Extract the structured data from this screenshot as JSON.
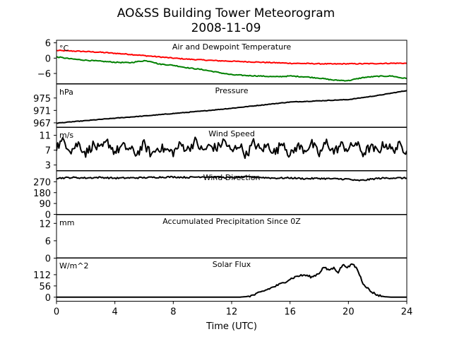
{
  "chart_data": {
    "title": "AO&SS Building Tower Meteorogram",
    "subtitle": "2008-11-09",
    "xlabel": "Time (UTC)",
    "xlim": [
      0,
      24
    ],
    "xticks": [
      0,
      4,
      8,
      12,
      16,
      20,
      24
    ],
    "panels": [
      {
        "id": "temperature",
        "type": "line",
        "title": "Air and Dewpoint Temperature",
        "unit": "°C",
        "ylim": [
          -10,
          7
        ],
        "yticks": [
          "6",
          "0",
          "−6"
        ],
        "ytick_values": [
          6,
          0,
          -6
        ],
        "series": [
          {
            "color": "#ff0000",
            "x": [
              0,
              1,
              2,
              3,
              4,
              5,
              6,
              7,
              8,
              9,
              10,
              11,
              12,
              13,
              14,
              15,
              16,
              17,
              18,
              19,
              20,
              21,
              22,
              23,
              24
            ],
            "y": [
              3.0,
              2.8,
              2.6,
              2.3,
              1.9,
              1.5,
              1.0,
              0.5,
              0.0,
              -0.4,
              -0.7,
              -1.0,
              -1.2,
              -1.4,
              -1.6,
              -1.8,
              -2.0,
              -2.1,
              -2.2,
              -2.3,
              -2.2,
              -2.2,
              -2.1,
              -2.0,
              -2.0
            ]
          },
          {
            "color": "#008000",
            "x": [
              0,
              1,
              2,
              3,
              4,
              5,
              6,
              6.5,
              7,
              8,
              9,
              10,
              11,
              12,
              13,
              14,
              15,
              16,
              17,
              18,
              19,
              20,
              21,
              22,
              23,
              23.5,
              24
            ],
            "y": [
              0.5,
              -0.3,
              -0.8,
              -1.2,
              -1.6,
              -1.8,
              -1.0,
              -1.3,
              -2.3,
              -2.8,
              -3.8,
              -4.5,
              -5.5,
              -6.5,
              -6.8,
              -7.0,
              -7.3,
              -7.0,
              -7.3,
              -7.8,
              -8.6,
              -8.8,
              -7.6,
              -7.1,
              -7.0,
              -7.6,
              -8.0
            ]
          }
        ]
      },
      {
        "id": "pressure",
        "type": "line",
        "title": "Pressure",
        "unit": "hPa",
        "ylim": [
          965.5,
          979.5
        ],
        "yticks": [
          "975",
          "971",
          "967"
        ],
        "ytick_values": [
          975,
          971,
          967
        ],
        "series": [
          {
            "color": "#000000",
            "x": [
              0,
              2,
              4,
              6,
              8,
              10,
              12,
              14,
              16,
              18,
              20,
              22,
              24
            ],
            "y": [
              966.9,
              967.7,
              968.5,
              969.2,
              970.0,
              970.8,
              971.7,
              972.7,
              973.7,
              974.1,
              974.5,
              975.8,
              977.4
            ]
          }
        ]
      },
      {
        "id": "wind-speed",
        "type": "line",
        "title": "Wind Speed",
        "unit": "m/s",
        "ylim": [
          1.5,
          13.2
        ],
        "yticks": [
          "11",
          "7",
          "3"
        ],
        "ytick_values": [
          11,
          7,
          3
        ],
        "series": [
          {
            "color": "#000000",
            "x": [
              0,
              0.5,
              1,
              1.5,
              2,
              2.5,
              3,
              3.5,
              4,
              4.5,
              5,
              5.5,
              6,
              6.5,
              7,
              7.5,
              8,
              8.5,
              9,
              9.5,
              10,
              10.5,
              11,
              11.5,
              12,
              12.5,
              13,
              13.5,
              14,
              14.5,
              15,
              15.5,
              16,
              16.5,
              17,
              17.5,
              18,
              18.5,
              19,
              19.5,
              20,
              20.5,
              21,
              21.5,
              22,
              22.5,
              23,
              23.5,
              24
            ],
            "y": [
              8.0,
              9.5,
              7.0,
              8.8,
              6.2,
              8.4,
              7.1,
              9.2,
              6.5,
              8.0,
              7.3,
              6.0,
              8.6,
              5.8,
              7.8,
              7.0,
              6.4,
              8.5,
              7.2,
              9.4,
              6.8,
              8.1,
              7.5,
              9.6,
              6.4,
              8.6,
              5.6,
              9.0,
              7.0,
              8.3,
              6.2,
              9.5,
              5.4,
              8.2,
              7.0,
              8.7,
              5.8,
              9.2,
              6.5,
              8.4,
              7.2,
              9.0,
              6.1,
              7.8,
              6.6,
              8.8,
              7.0,
              8.2,
              6.8
            ]
          }
        ]
      },
      {
        "id": "wind-direction",
        "type": "line",
        "title": "Wind Direction",
        "unit": "",
        "ylim": [
          0,
          360
        ],
        "yticks": [
          "270",
          "180",
          "90",
          "0"
        ],
        "ytick_values": [
          270,
          180,
          90,
          0
        ],
        "series": [
          {
            "color": "#000000",
            "x": [
              0,
              1,
              2,
              3,
              4,
              5,
              6,
              7,
              8,
              9,
              10,
              11,
              12,
              13,
              14,
              15,
              16,
              17,
              18,
              19,
              20,
              20.5,
              21,
              21.5,
              22,
              23,
              24
            ],
            "y": [
              300,
              305,
              302,
              306,
              300,
              302,
              304,
              308,
              310,
              306,
              312,
              308,
              304,
              310,
              306,
              300,
              302,
              296,
              298,
              294,
              292,
              280,
              282,
              290,
              298,
              302,
              300
            ]
          }
        ]
      },
      {
        "id": "precipitation",
        "type": "line",
        "title": "Accumulated Precipitation Since 0Z",
        "unit": "mm",
        "ylim": [
          0,
          15
        ],
        "yticks": [
          "12",
          "6",
          "0"
        ],
        "ytick_values": [
          12,
          6,
          0
        ],
        "series": [
          {
            "color": "#000000",
            "x": [
              0,
              24
            ],
            "y": [
              0,
              0
            ]
          }
        ]
      },
      {
        "id": "solar-flux",
        "type": "line",
        "title": "Solar Flux",
        "unit": "W/m^2",
        "ylim": [
          -20,
          196
        ],
        "yticks": [
          "112",
          "56",
          "0"
        ],
        "ytick_values": [
          112,
          56,
          0
        ],
        "series": [
          {
            "color": "#000000",
            "x": [
              0,
              12.5,
              13,
              13.5,
              14,
              14.5,
              15,
              15.5,
              16,
              16.5,
              17,
              17.5,
              18,
              18.3,
              18.6,
              19,
              19.3,
              19.6,
              20,
              20.3,
              20.6,
              21,
              21.5,
              22,
              22.5,
              23,
              24
            ],
            "y": [
              0,
              0,
              3,
              10,
              25,
              40,
              55,
              70,
              90,
              105,
              110,
              100,
              120,
              150,
              135,
              145,
              125,
              160,
              150,
              165,
              140,
              70,
              30,
              10,
              2,
              0,
              0
            ]
          }
        ]
      }
    ]
  }
}
